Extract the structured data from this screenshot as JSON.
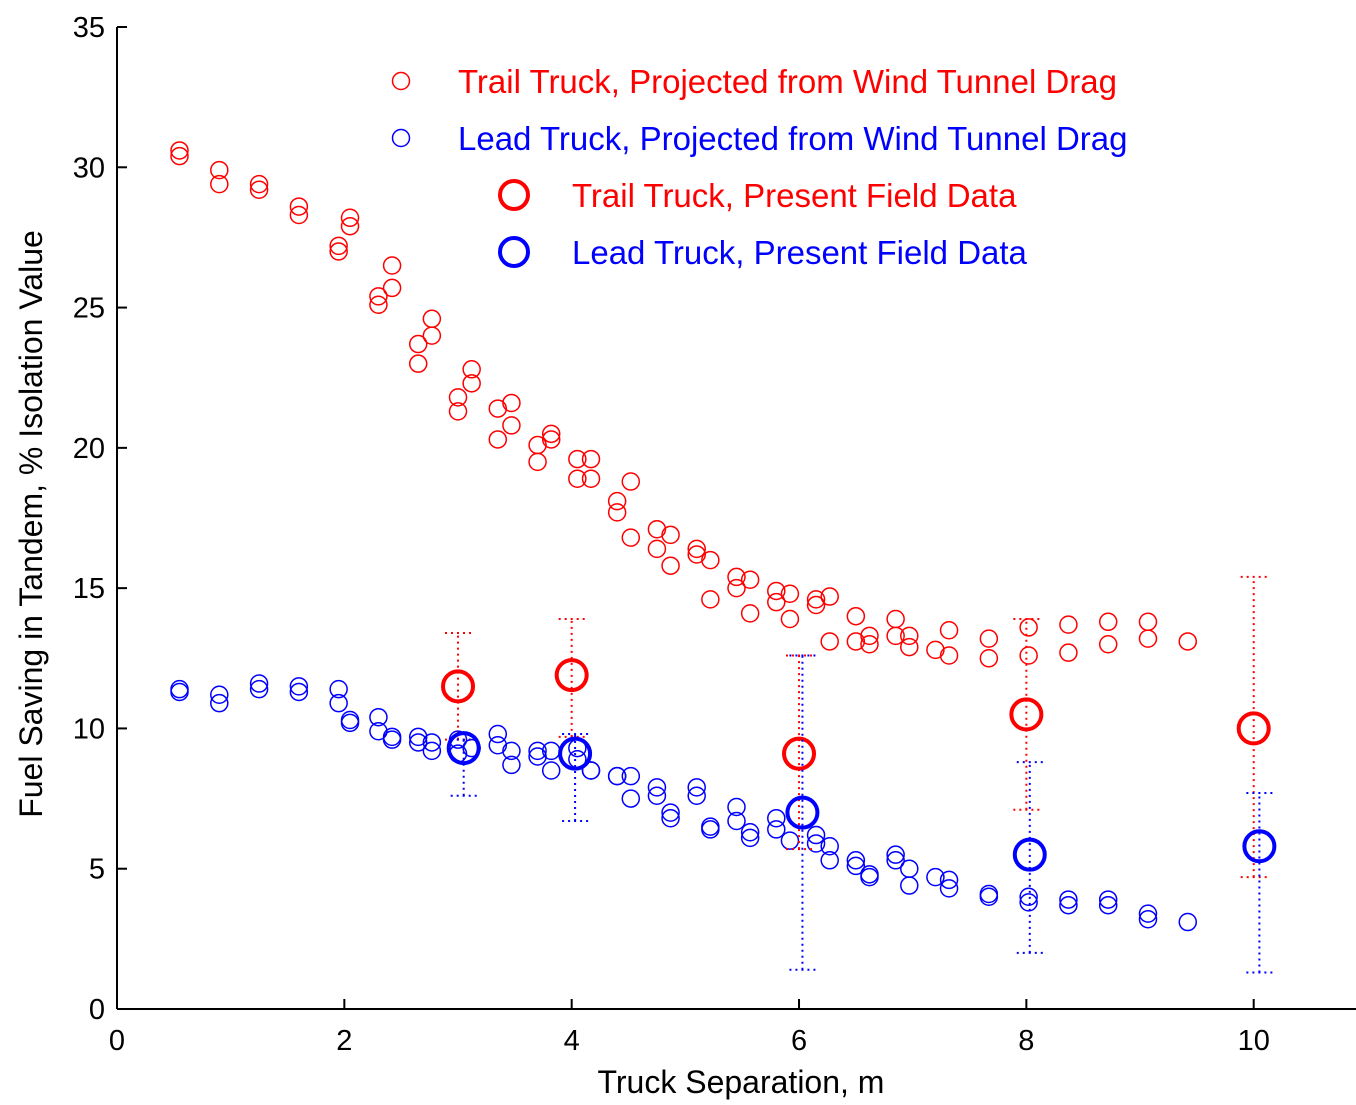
{
  "chart_data": {
    "type": "scatter",
    "xlabel": "Truck Separation, m",
    "ylabel": "Fuel Saving in Tandem, % Isolation Value",
    "xlim": [
      0,
      10.9
    ],
    "ylim": [
      0,
      35
    ],
    "xticks": [
      0,
      2,
      4,
      6,
      8,
      10
    ],
    "yticks": [
      0,
      5,
      10,
      15,
      20,
      25,
      30,
      35
    ],
    "grid": false,
    "legend_position": "top-right",
    "series": [
      {
        "name": "Trail Truck, Projected from Wind Tunnel Drag",
        "color": "#ff0000",
        "marker": "small-circle",
        "points": [
          [
            0.55,
            30.4
          ],
          [
            0.55,
            30.6
          ],
          [
            0.9,
            29.4
          ],
          [
            0.9,
            29.9
          ],
          [
            1.25,
            29.2
          ],
          [
            1.25,
            29.4
          ],
          [
            1.6,
            28.3
          ],
          [
            1.6,
            28.6
          ],
          [
            1.95,
            27.0
          ],
          [
            1.95,
            27.2
          ],
          [
            2.05,
            27.9
          ],
          [
            2.05,
            28.2
          ],
          [
            2.3,
            25.1
          ],
          [
            2.3,
            25.4
          ],
          [
            2.42,
            25.7
          ],
          [
            2.42,
            26.5
          ],
          [
            2.65,
            23.0
          ],
          [
            2.65,
            23.7
          ],
          [
            2.77,
            24.0
          ],
          [
            2.77,
            24.6
          ],
          [
            3.0,
            21.3
          ],
          [
            3.0,
            21.8
          ],
          [
            3.12,
            22.3
          ],
          [
            3.12,
            22.8
          ],
          [
            3.35,
            20.3
          ],
          [
            3.35,
            21.4
          ],
          [
            3.47,
            20.8
          ],
          [
            3.47,
            21.6
          ],
          [
            3.7,
            19.5
          ],
          [
            3.7,
            20.1
          ],
          [
            3.82,
            20.3
          ],
          [
            3.82,
            20.5
          ],
          [
            4.05,
            18.9
          ],
          [
            4.05,
            19.6
          ],
          [
            4.17,
            18.9
          ],
          [
            4.17,
            19.6
          ],
          [
            4.4,
            17.7
          ],
          [
            4.4,
            18.1
          ],
          [
            4.52,
            16.8
          ],
          [
            4.52,
            18.8
          ],
          [
            4.75,
            16.4
          ],
          [
            4.75,
            17.1
          ],
          [
            4.87,
            15.8
          ],
          [
            4.87,
            16.9
          ],
          [
            5.1,
            16.2
          ],
          [
            5.1,
            16.4
          ],
          [
            5.22,
            14.6
          ],
          [
            5.22,
            16.0
          ],
          [
            5.45,
            15.0
          ],
          [
            5.45,
            15.4
          ],
          [
            5.57,
            14.1
          ],
          [
            5.57,
            15.3
          ],
          [
            5.8,
            14.5
          ],
          [
            5.8,
            14.9
          ],
          [
            5.92,
            13.9
          ],
          [
            5.92,
            14.8
          ],
          [
            6.15,
            14.4
          ],
          [
            6.15,
            14.6
          ],
          [
            6.27,
            13.1
          ],
          [
            6.27,
            14.7
          ],
          [
            6.5,
            13.1
          ],
          [
            6.5,
            14.0
          ],
          [
            6.62,
            13.0
          ],
          [
            6.62,
            13.3
          ],
          [
            6.85,
            13.3
          ],
          [
            6.85,
            13.9
          ],
          [
            6.97,
            12.9
          ],
          [
            6.97,
            13.3
          ],
          [
            7.2,
            12.8
          ],
          [
            7.32,
            12.6
          ],
          [
            7.32,
            13.5
          ],
          [
            7.67,
            12.5
          ],
          [
            7.67,
            13.2
          ],
          [
            8.02,
            12.6
          ],
          [
            8.02,
            13.6
          ],
          [
            8.37,
            12.7
          ],
          [
            8.37,
            13.7
          ],
          [
            8.72,
            13.0
          ],
          [
            8.72,
            13.8
          ],
          [
            9.07,
            13.2
          ],
          [
            9.07,
            13.8
          ],
          [
            9.42,
            13.1
          ]
        ]
      },
      {
        "name": "Lead Truck, Projected from Wind Tunnel Drag",
        "color": "#0000ff",
        "marker": "small-circle",
        "points": [
          [
            0.55,
            11.3
          ],
          [
            0.55,
            11.4
          ],
          [
            0.9,
            10.9
          ],
          [
            0.9,
            11.2
          ],
          [
            1.25,
            11.4
          ],
          [
            1.25,
            11.6
          ],
          [
            1.6,
            11.3
          ],
          [
            1.6,
            11.5
          ],
          [
            1.95,
            10.9
          ],
          [
            1.95,
            11.4
          ],
          [
            2.05,
            10.2
          ],
          [
            2.05,
            10.3
          ],
          [
            2.3,
            9.9
          ],
          [
            2.3,
            10.4
          ],
          [
            2.42,
            9.6
          ],
          [
            2.42,
            9.7
          ],
          [
            2.65,
            9.5
          ],
          [
            2.65,
            9.7
          ],
          [
            2.77,
            9.2
          ],
          [
            2.77,
            9.5
          ],
          [
            3.0,
            9.1
          ],
          [
            3.0,
            9.6
          ],
          [
            3.12,
            9.3
          ],
          [
            3.35,
            9.4
          ],
          [
            3.35,
            9.8
          ],
          [
            3.47,
            8.7
          ],
          [
            3.47,
            9.2
          ],
          [
            3.7,
            9.0
          ],
          [
            3.7,
            9.2
          ],
          [
            3.82,
            8.5
          ],
          [
            3.82,
            9.2
          ],
          [
            4.05,
            8.9
          ],
          [
            4.05,
            9.3
          ],
          [
            4.17,
            8.5
          ],
          [
            4.17,
            8.5
          ],
          [
            4.4,
            8.3
          ],
          [
            4.4,
            8.3
          ],
          [
            4.52,
            7.5
          ],
          [
            4.52,
            8.3
          ],
          [
            4.75,
            7.6
          ],
          [
            4.75,
            7.9
          ],
          [
            4.87,
            6.8
          ],
          [
            4.87,
            7.0
          ],
          [
            5.1,
            7.6
          ],
          [
            5.1,
            7.9
          ],
          [
            5.22,
            6.4
          ],
          [
            5.22,
            6.5
          ],
          [
            5.45,
            6.7
          ],
          [
            5.45,
            7.2
          ],
          [
            5.57,
            6.1
          ],
          [
            5.57,
            6.3
          ],
          [
            5.8,
            6.4
          ],
          [
            5.8,
            6.8
          ],
          [
            5.92,
            6.0
          ],
          [
            6.15,
            5.9
          ],
          [
            6.15,
            6.2
          ],
          [
            6.27,
            5.3
          ],
          [
            6.27,
            5.8
          ],
          [
            6.5,
            5.1
          ],
          [
            6.5,
            5.3
          ],
          [
            6.62,
            4.7
          ],
          [
            6.62,
            4.8
          ],
          [
            6.85,
            5.3
          ],
          [
            6.85,
            5.5
          ],
          [
            6.97,
            4.4
          ],
          [
            6.97,
            5.0
          ],
          [
            7.2,
            4.7
          ],
          [
            7.32,
            4.3
          ],
          [
            7.32,
            4.6
          ],
          [
            7.67,
            4.0
          ],
          [
            7.67,
            4.1
          ],
          [
            8.02,
            3.8
          ],
          [
            8.02,
            4.0
          ],
          [
            8.37,
            3.7
          ],
          [
            8.37,
            3.9
          ],
          [
            8.72,
            3.7
          ],
          [
            8.72,
            3.9
          ],
          [
            9.07,
            3.2
          ],
          [
            9.07,
            3.4
          ],
          [
            9.42,
            3.1
          ]
        ]
      },
      {
        "name": "Trail Truck, Present Field Data",
        "color": "#ff0000",
        "marker": "large-circle",
        "points": [
          [
            3.0,
            11.5
          ],
          [
            4.0,
            11.9
          ],
          [
            6.0,
            9.1
          ],
          [
            8.0,
            10.5
          ],
          [
            10.0,
            10.0
          ]
        ],
        "error_bars": [
          [
            9.6,
            13.4
          ],
          [
            9.7,
            13.9
          ],
          [
            5.7,
            12.6
          ],
          [
            7.1,
            13.9
          ],
          [
            4.7,
            15.4
          ]
        ]
      },
      {
        "name": "Lead Truck, Present Field Data",
        "color": "#0000ff",
        "marker": "large-circle",
        "points": [
          [
            3.05,
            9.3
          ],
          [
            4.03,
            9.1
          ],
          [
            6.03,
            7.0
          ],
          [
            8.03,
            5.5
          ],
          [
            10.05,
            5.8
          ]
        ],
        "error_bars": [
          [
            7.6,
            9.6
          ],
          [
            6.7,
            9.8
          ],
          [
            1.4,
            12.6
          ],
          [
            2.0,
            8.8
          ],
          [
            1.3,
            7.7
          ]
        ]
      }
    ]
  }
}
